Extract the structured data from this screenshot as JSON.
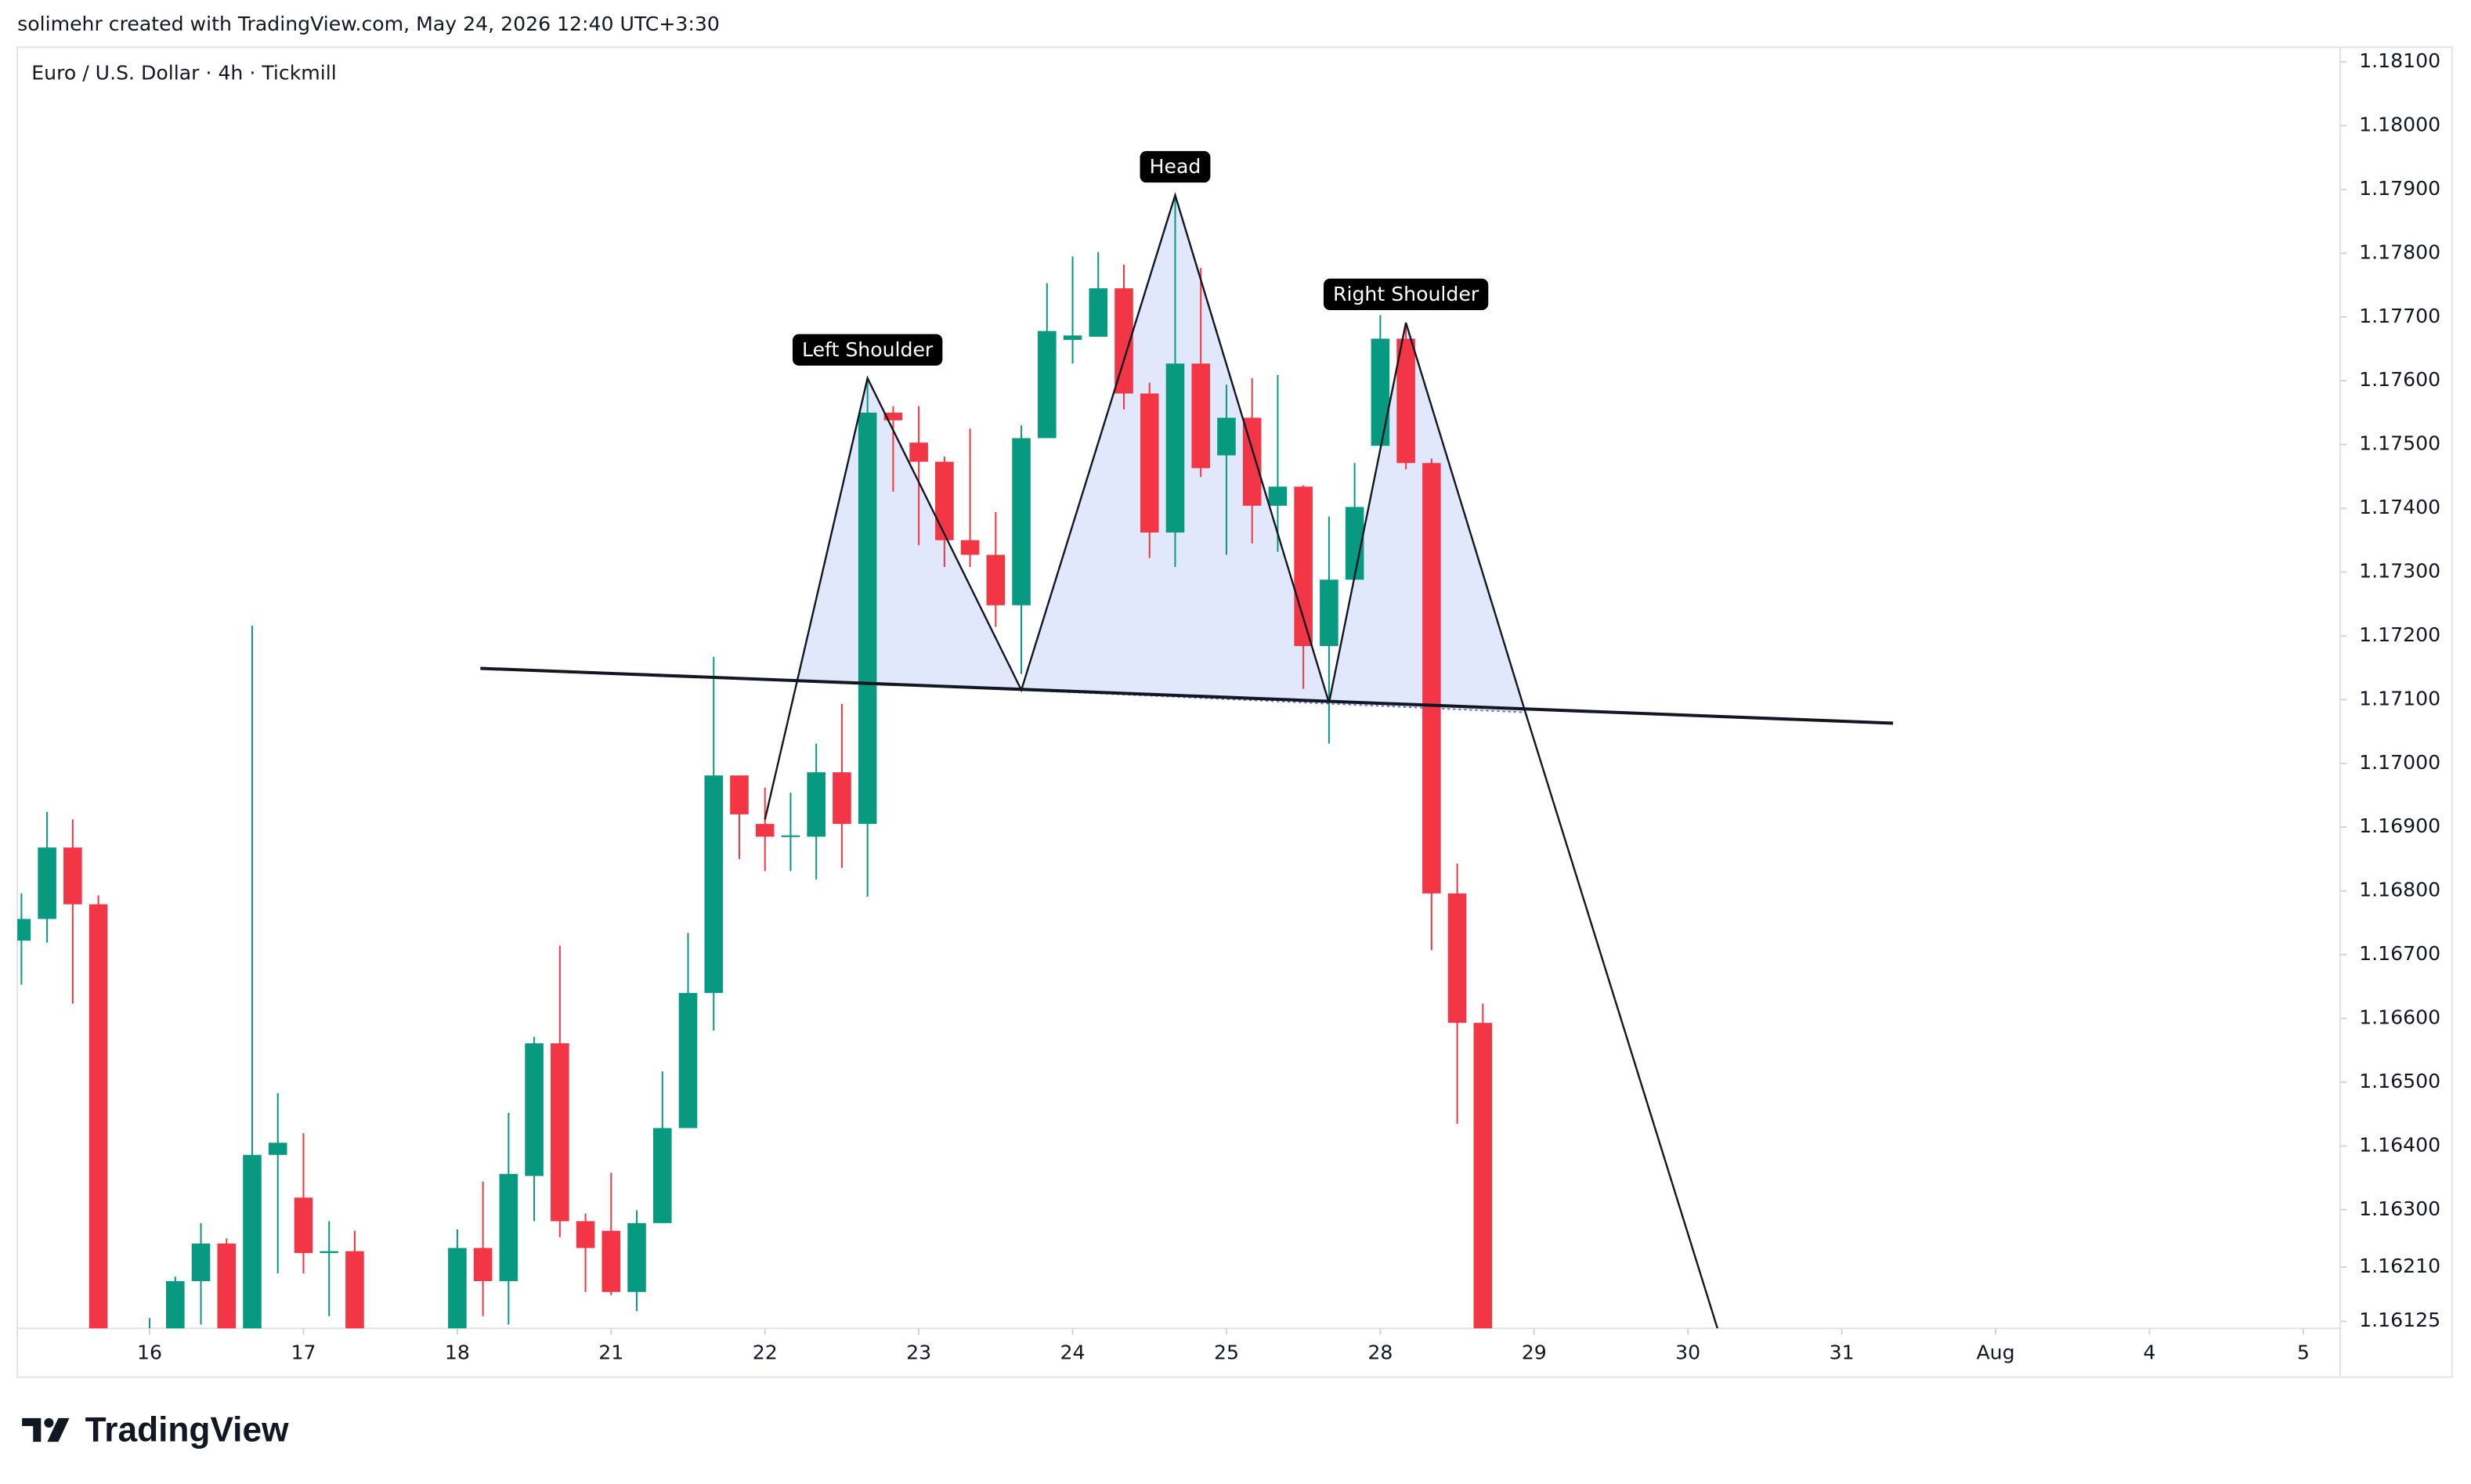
{
  "attribution": "solimehr created with TradingView.com, May 24, 2026 12:40 UTC+3:30",
  "logo": "TradingView",
  "chart_data": {
    "type": "candlestick",
    "title": "Euro / U.S. Dollar · 4h · Tickmill",
    "up_color": "#089981",
    "down_color": "#f23645",
    "x": [
      -5,
      -4,
      -3,
      -2,
      0,
      1,
      2,
      3,
      4,
      5,
      6,
      7,
      8,
      12,
      13,
      14,
      15,
      16,
      17,
      18,
      19,
      20,
      21,
      22,
      23,
      24,
      25,
      26,
      27,
      28,
      29,
      30,
      31,
      32,
      33,
      34,
      35,
      36,
      37,
      38,
      39,
      40,
      41,
      42,
      43,
      44,
      45,
      46,
      47,
      48,
      49,
      50,
      51,
      52
    ],
    "open": [
      1.16722,
      1.16756,
      1.16868,
      1.16779,
      1.1605,
      1.1608,
      1.16188,
      1.16247,
      1.1608,
      1.16386,
      1.16319,
      1.16232,
      1.16235,
      1.161,
      1.1624,
      1.16188,
      1.16353,
      1.16561,
      1.16282,
      1.16267,
      1.16171,
      1.16279,
      1.16428,
      1.1664,
      1.16981,
      1.16905,
      1.16885,
      1.16885,
      1.16986,
      1.16905,
      1.1755,
      1.17503,
      1.17473,
      1.1735,
      1.17327,
      1.17248,
      1.1751,
      1.17664,
      1.17669,
      1.17745,
      1.1758,
      1.17362,
      1.17627,
      1.17483,
      1.17542,
      1.17404,
      1.17434,
      1.17184,
      1.17288,
      1.17498,
      1.17666,
      1.17471,
      1.16796,
      1.16593
    ],
    "high": [
      1.16796,
      1.16924,
      1.16912,
      1.16793,
      1.1613,
      1.16195,
      1.16279,
      1.16255,
      1.17216,
      1.16483,
      1.1642,
      1.16282,
      1.16267,
      1.16269,
      1.16344,
      1.16452,
      1.16571,
      1.16714,
      1.16294,
      1.16358,
      1.16299,
      1.16517,
      1.16734,
      1.17167,
      1.16981,
      1.16962,
      1.16954,
      1.17031,
      1.17093,
      1.17604,
      1.1756,
      1.1756,
      1.17481,
      1.17525,
      1.17394,
      1.1753,
      1.17753,
      1.17795,
      1.17802,
      1.17782,
      1.17597,
      1.17891,
      1.17777,
      1.17594,
      1.17604,
      1.17609,
      1.17436,
      1.17387,
      1.17471,
      1.17703,
      1.17691,
      1.17478,
      1.16843,
      1.16623
    ],
    "low": [
      1.16653,
      1.16719,
      1.16623,
      1.1595,
      1.16,
      1.1605,
      1.1612,
      1.16,
      1.16,
      1.162,
      1.162,
      1.16133,
      1.16,
      1.16,
      1.16133,
      1.1612,
      1.16282,
      1.16257,
      1.16171,
      1.16166,
      1.16141,
      1.16279,
      1.16428,
      1.16581,
      1.1685,
      1.16831,
      1.16831,
      1.16818,
      1.16836,
      1.16791,
      1.17426,
      1.17342,
      1.17308,
      1.17308,
      1.17214,
      1.1714,
      1.1751,
      1.17627,
      1.17669,
      1.17555,
      1.17322,
      1.17308,
      1.17449,
      1.17327,
      1.17345,
      1.17332,
      1.17117,
      1.17031,
      1.17288,
      1.17498,
      1.17461,
      1.16707,
      1.16435,
      1.16
    ],
    "close": [
      1.16756,
      1.16868,
      1.16779,
      1.16,
      1.161,
      1.16188,
      1.16247,
      1.1605,
      1.16386,
      1.16405,
      1.16232,
      1.16235,
      1.1605,
      1.1624,
      1.16188,
      1.16356,
      1.16561,
      1.16282,
      1.1624,
      1.16171,
      1.16279,
      1.16428,
      1.1664,
      1.16981,
      1.1692,
      1.16885,
      1.16887,
      1.16986,
      1.16905,
      1.1755,
      1.17538,
      1.17473,
      1.1735,
      1.17327,
      1.17248,
      1.1751,
      1.17678,
      1.17671,
      1.17745,
      1.1758,
      1.17362,
      1.17627,
      1.17463,
      1.17542,
      1.17404,
      1.17434,
      1.17184,
      1.17288,
      1.17402,
      1.17666,
      1.17471,
      1.16796,
      1.16593,
      1.1605
    ],
    "xlim": [
      -5.16,
      85.44
    ],
    "ylim": [
      1.16114,
      1.18123
    ],
    "xticks": [
      {
        "value": 0,
        "label": "16"
      },
      {
        "value": 6,
        "label": "17"
      },
      {
        "value": 12,
        "label": "18"
      },
      {
        "value": 18,
        "label": "21"
      },
      {
        "value": 24,
        "label": "22"
      },
      {
        "value": 30,
        "label": "23"
      },
      {
        "value": 36,
        "label": "24"
      },
      {
        "value": 42,
        "label": "25"
      },
      {
        "value": 48,
        "label": "28"
      },
      {
        "value": 54,
        "label": "29"
      },
      {
        "value": 60,
        "label": "30"
      },
      {
        "value": 66,
        "label": "31"
      },
      {
        "value": 72,
        "label": "Aug"
      },
      {
        "value": 78,
        "label": "4"
      },
      {
        "value": 84,
        "label": "5"
      }
    ],
    "yticks": [
      {
        "value": 1.181,
        "label": "1.18100"
      },
      {
        "value": 1.18,
        "label": "1.18000"
      },
      {
        "value": 1.179,
        "label": "1.17900"
      },
      {
        "value": 1.178,
        "label": "1.17800"
      },
      {
        "value": 1.177,
        "label": "1.17700"
      },
      {
        "value": 1.176,
        "label": "1.17600"
      },
      {
        "value": 1.175,
        "label": "1.17500"
      },
      {
        "value": 1.174,
        "label": "1.17400"
      },
      {
        "value": 1.173,
        "label": "1.17300"
      },
      {
        "value": 1.172,
        "label": "1.17200"
      },
      {
        "value": 1.171,
        "label": "1.17100"
      },
      {
        "value": 1.17,
        "label": "1.17000"
      },
      {
        "value": 1.169,
        "label": "1.16900"
      },
      {
        "value": 1.168,
        "label": "1.16800"
      },
      {
        "value": 1.167,
        "label": "1.16700"
      },
      {
        "value": 1.166,
        "label": "1.16600"
      },
      {
        "value": 1.165,
        "label": "1.16500"
      },
      {
        "value": 1.164,
        "label": "1.16400"
      },
      {
        "value": 1.163,
        "label": "1.16300"
      },
      {
        "value": 1.1621,
        "label": "1.16210"
      },
      {
        "value": 1.16125,
        "label": "1.16125"
      }
    ],
    "pattern": {
      "x": [
        24,
        28,
        34,
        40,
        46,
        49,
        53.66,
        61.15
      ],
      "y": [
        1.16912,
        1.17604,
        1.17115,
        1.17891,
        1.17095,
        1.17691,
        1.1708,
        1.16114
      ]
    },
    "neckline": {
      "x": [
        12.9,
        68.0
      ],
      "y": [
        1.17149,
        1.17063
      ]
    },
    "annotations": [
      {
        "text": "Left Shoulder",
        "x": 28,
        "y": 1.17604
      },
      {
        "text": "Head",
        "x": 40,
        "y": 1.17891
      },
      {
        "text": "Right Shoulder",
        "x": 49,
        "y": 1.17691
      }
    ]
  }
}
